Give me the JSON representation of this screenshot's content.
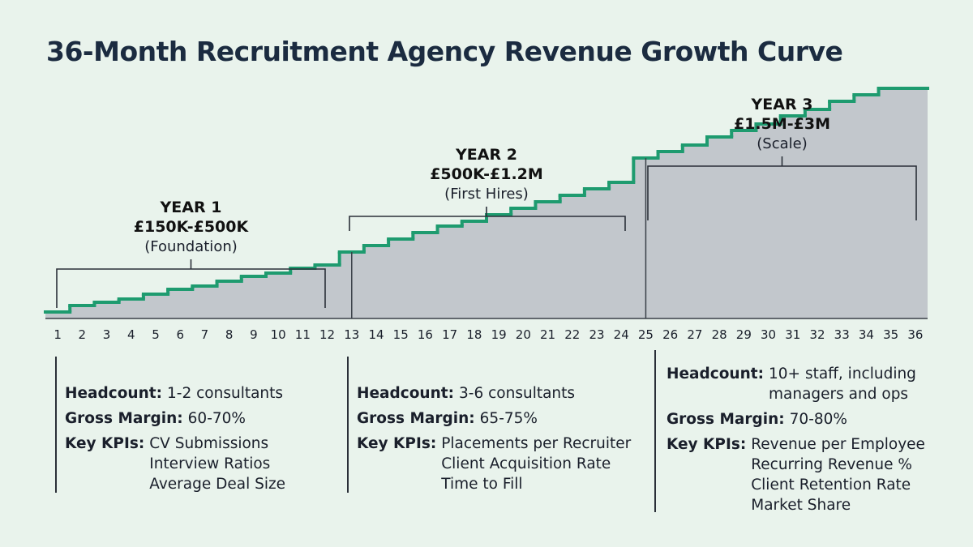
{
  "title": "36-Month Recruitment Agency Revenue Growth Curve",
  "chart_data": {
    "type": "area",
    "step": true,
    "x": [
      1,
      2,
      3,
      4,
      5,
      6,
      7,
      8,
      9,
      10,
      11,
      12,
      13,
      14,
      15,
      16,
      17,
      18,
      19,
      20,
      21,
      22,
      23,
      24,
      25,
      26,
      27,
      28,
      29,
      30,
      31,
      32,
      33,
      34,
      35,
      36
    ],
    "y": [
      4,
      8,
      10,
      12,
      15,
      18,
      20,
      23,
      26,
      28,
      31,
      33,
      41,
      45,
      49,
      53,
      57,
      60,
      64,
      68,
      72,
      76,
      80,
      84,
      99,
      103,
      107,
      112,
      116,
      120,
      125,
      129,
      134,
      138,
      142,
      142
    ],
    "y_units": "relative (axis unlabeled)",
    "xlim": [
      1,
      36
    ],
    "ylim": [
      0,
      180
    ],
    "line_color": "#1e9b6f",
    "fill_color": "#c2c7cc",
    "divider_months": [
      12.5,
      24.5
    ],
    "phases": [
      {
        "year": "YEAR 1",
        "range": "£150K-£500K",
        "stage": "(Foundation)",
        "start": 1,
        "end": 12
      },
      {
        "year": "YEAR 2",
        "range": "£500K-£1.2M",
        "stage": "(First Hires)",
        "start": 13,
        "end": 24
      },
      {
        "year": "YEAR 3",
        "range": "£1.5M-£3M",
        "stage": "(Scale)",
        "start": 25,
        "end": 36
      }
    ]
  },
  "details": [
    {
      "headcount_label": "Headcount:",
      "headcount": [
        "1-2 consultants"
      ],
      "margin_label": "Gross Margin:",
      "margin": "60-70%",
      "kpi_label": "Key KPIs:",
      "kpis": [
        "CV Submissions",
        "Interview Ratios",
        "Average Deal Size"
      ]
    },
    {
      "headcount_label": "Headcount:",
      "headcount": [
        "3-6 consultants"
      ],
      "margin_label": "Gross Margin:",
      "margin": "65-75%",
      "kpi_label": "Key KPIs:",
      "kpis": [
        "Placements per Recruiter",
        "Client Acquisition Rate",
        "Time to Fill"
      ]
    },
    {
      "headcount_label": "Headcount:",
      "headcount": [
        "10+ staff, including",
        "managers and ops"
      ],
      "margin_label": "Gross Margin:",
      "margin": "70-80%",
      "kpi_label": "Key KPIs:",
      "kpis": [
        "Revenue per Employee",
        "Recurring Revenue %",
        "Client Retention Rate",
        "Market Share"
      ]
    }
  ]
}
